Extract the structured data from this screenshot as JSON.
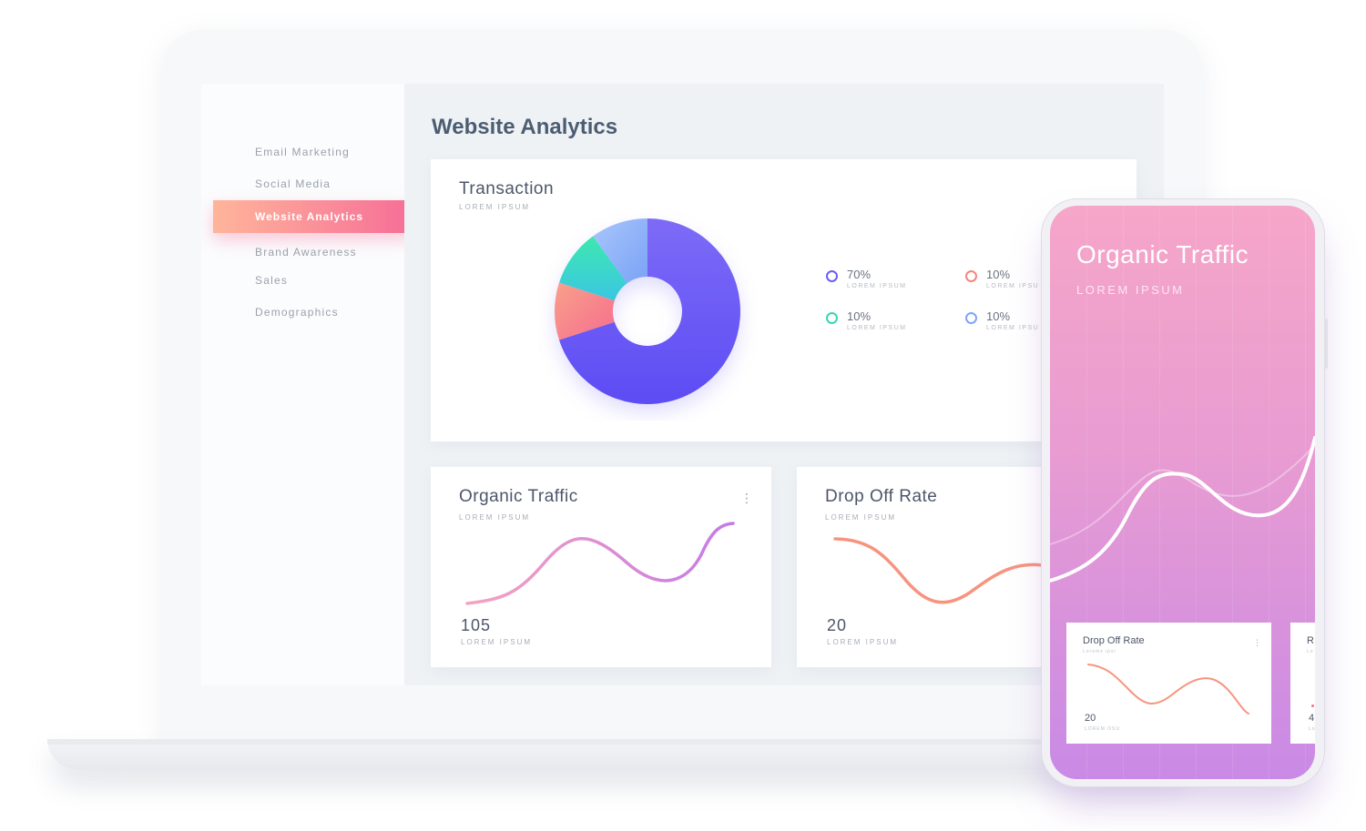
{
  "sidebar": {
    "items": [
      {
        "label": "Email Marketing"
      },
      {
        "label": "Social Media"
      },
      {
        "label": "Website Analytics",
        "active": true
      },
      {
        "label": "Brand Awareness"
      },
      {
        "label": "Sales"
      },
      {
        "label": "Demographics"
      }
    ]
  },
  "page": {
    "title": "Website Analytics"
  },
  "transaction": {
    "title": "Transaction",
    "subtitle": "LOREM IPSUM",
    "legend": [
      {
        "pct": "70%",
        "label": "LOREM IPSUM",
        "color": "#6a5ef5"
      },
      {
        "pct": "10%",
        "label": "LOREM IPSU",
        "color": "#f7857c"
      },
      {
        "pct": "10%",
        "label": "LOREM IPSUM",
        "color": "#36d6b8"
      },
      {
        "pct": "10%",
        "label": "LOREM IPSU",
        "color": "#7ea6f7"
      }
    ]
  },
  "organic": {
    "title": "Organic Traffic",
    "subtitle": "LOREM IPSUM",
    "value": "105",
    "value_label": "LOREM IPSUM"
  },
  "dropoff": {
    "title": "Drop Off Rate",
    "subtitle": "LOREM IPSUM",
    "value": "20",
    "value_label": "LOREM IPSUM"
  },
  "phone": {
    "title": "Organic Traffic",
    "subtitle": "LOREM IPSUM",
    "card1": {
      "title": "Drop Off Rate",
      "subtitle": "Lorems ipsi",
      "value": "20",
      "value_label": "LOREM OSU"
    },
    "card2": {
      "title": "R",
      "subtitle": "Lo",
      "value": "4",
      "value_label": "Lo"
    }
  },
  "colors": {
    "accent_start": "#ffb59a",
    "accent_end": "#f66e98",
    "donut_purple": "#6a5ef5",
    "donut_coral": "#f7857c",
    "donut_teal": "#36d6b8",
    "donut_blue": "#7ea6f7"
  },
  "icons": [
    "more-vertical-icon"
  ]
}
